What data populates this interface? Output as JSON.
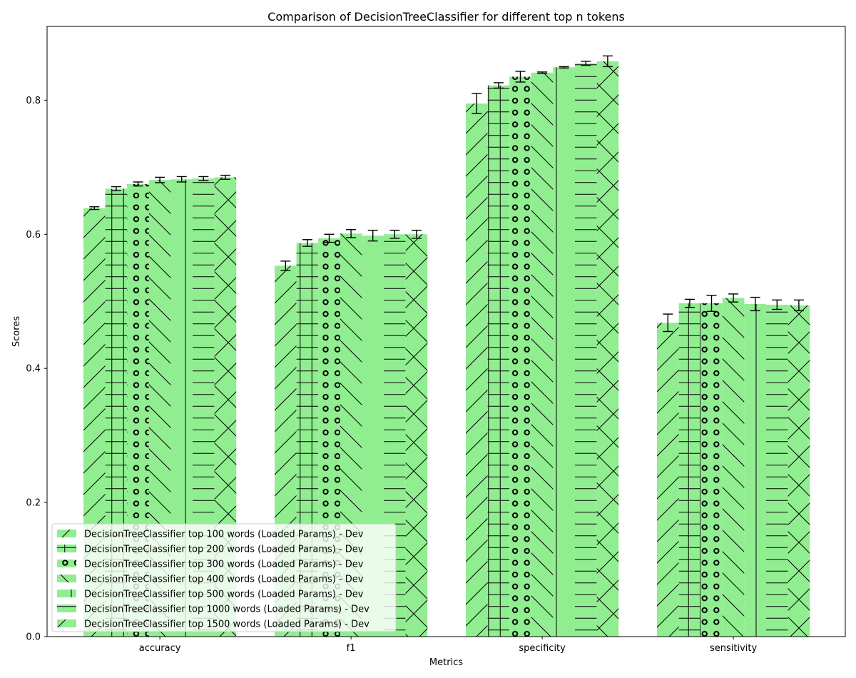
{
  "chart_data": {
    "type": "bar",
    "title": "Comparison of DecisionTreeClassifier for different top n tokens",
    "xlabel": "Metrics",
    "ylabel": "Scores",
    "categories": [
      "accuracy",
      "f1",
      "specificity",
      "sensitivity"
    ],
    "ylim": [
      0,
      0.91
    ],
    "yticks": [
      "0.0",
      "0.2",
      "0.4",
      "0.6",
      "0.8"
    ],
    "ytick_values": [
      0,
      0.2,
      0.4,
      0.6,
      0.8
    ],
    "grid": false,
    "legend_position": "lower-left",
    "bar_color": "#90ee90",
    "edge_color": "#000000",
    "series": [
      {
        "name": "DecisionTreeClassifier top 100 words  (Loaded Params) - Dev",
        "hatch": "/",
        "values": [
          0.639,
          0.553,
          0.795,
          0.468
        ],
        "errors": [
          0.002,
          0.007,
          0.015,
          0.013
        ]
      },
      {
        "name": "DecisionTreeClassifier top 200 words  (Loaded Params) - Dev",
        "hatch": "+",
        "values": [
          0.668,
          0.587,
          0.822,
          0.497
        ],
        "errors": [
          0.003,
          0.005,
          0.004,
          0.006
        ]
      },
      {
        "name": "DecisionTreeClassifier top 300 words  (Loaded Params) - Dev",
        "hatch": "o",
        "values": [
          0.675,
          0.594,
          0.835,
          0.497
        ],
        "errors": [
          0.003,
          0.006,
          0.008,
          0.012
        ]
      },
      {
        "name": "DecisionTreeClassifier top 400 words  (Loaded Params) - Dev",
        "hatch": "\\",
        "values": [
          0.681,
          0.601,
          0.841,
          0.505
        ],
        "errors": [
          0.004,
          0.006,
          0.001,
          0.006
        ]
      },
      {
        "name": "DecisionTreeClassifier top 500 words  (Loaded Params) - Dev",
        "hatch": "|",
        "values": [
          0.682,
          0.598,
          0.849,
          0.496
        ],
        "errors": [
          0.004,
          0.008,
          0.001,
          0.01
        ]
      },
      {
        "name": "DecisionTreeClassifier top 1000 words  (Loaded Params) - Dev",
        "hatch": "-",
        "values": [
          0.683,
          0.6,
          0.855,
          0.495
        ],
        "errors": [
          0.003,
          0.006,
          0.003,
          0.007
        ]
      },
      {
        "name": "DecisionTreeClassifier top 1500 words  (Loaded Params) - Dev",
        "hatch": "x",
        "values": [
          0.685,
          0.6,
          0.858,
          0.494
        ],
        "errors": [
          0.003,
          0.006,
          0.008,
          0.008
        ]
      }
    ]
  }
}
